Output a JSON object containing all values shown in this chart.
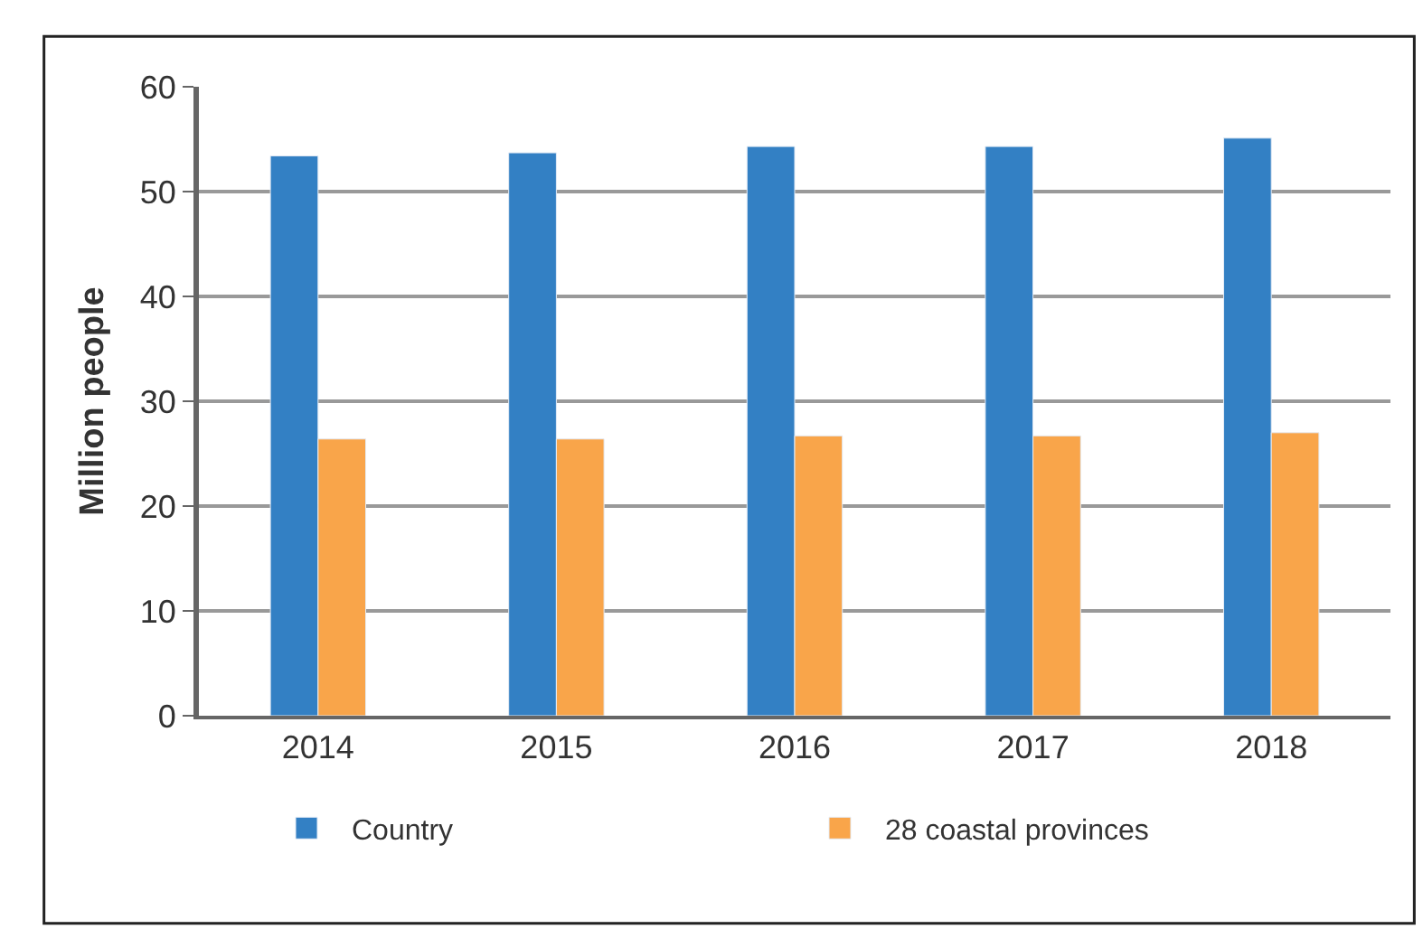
{
  "chart_data": {
    "type": "bar",
    "ylabel": "Million people",
    "categories": [
      "2014",
      "2015",
      "2016",
      "2017",
      "2018"
    ],
    "series": [
      {
        "name": "Country",
        "color": "#3380c4",
        "values": [
          53.4,
          53.7,
          54.3,
          54.3,
          55.1
        ]
      },
      {
        "name": "28 coastal provinces",
        "color": "#f9a54a",
        "values": [
          26.4,
          26.4,
          26.7,
          26.7,
          27.0
        ]
      }
    ],
    "ylim": [
      0,
      60
    ],
    "yticks": [
      0,
      10,
      20,
      30,
      40,
      50,
      60
    ],
    "grid": "y",
    "legend": "bottom"
  }
}
